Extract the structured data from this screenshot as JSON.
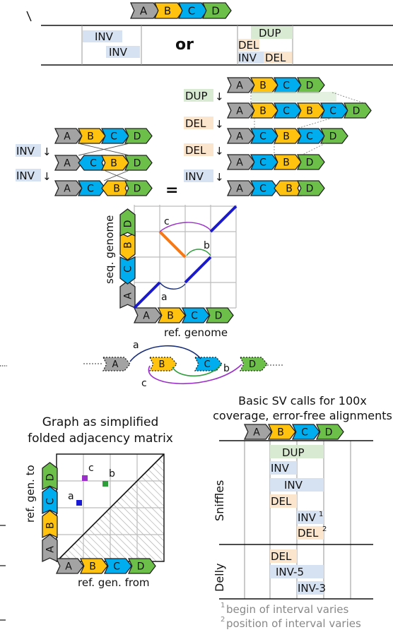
{
  "colors": {
    "gene_a": "#a3a3a3",
    "gene_b": "#ffc20e",
    "gene_c": "#00aeef",
    "gene_d": "#6cc04a",
    "dup_bg": "#d9ead3",
    "del_bg": "#fce5cd",
    "inv_bg": "#d6e2f2",
    "path_blue": "#1a1ad4",
    "path_orange": "#f27a1a",
    "edge_purple": "#9b2fc9",
    "edge_green": "#2e9e3a",
    "edge_navy": "#1a2f7a",
    "grid": "#bcbcbc",
    "hatch": "#aaaaaa"
  },
  "genes": {
    "a": "A",
    "b": "B",
    "c": "C",
    "d": "D"
  },
  "top": {
    "or_label": "or",
    "left_calls": [
      "INV",
      "INV"
    ],
    "right_calls": [
      "DUP",
      "DEL",
      "INV",
      "DEL"
    ]
  },
  "left_path": {
    "steps": [
      "INV",
      "INV"
    ],
    "equals": "="
  },
  "right_path": {
    "steps": [
      "DUP",
      "DEL",
      "DEL",
      "INV"
    ]
  },
  "dotplot": {
    "ylabel": "seq. genome",
    "xlabel": "ref. genome",
    "edge_labels": [
      "a",
      "b",
      "c"
    ]
  },
  "graph": {
    "edge_labels": [
      "a",
      "b",
      "c"
    ]
  },
  "matrix": {
    "title_line1": "Graph as simplified",
    "title_line2": "folded adjacency matrix",
    "ylabel": "ref. gen. to",
    "xlabel": "ref. gen. from",
    "cell_labels": [
      "a",
      "b",
      "c"
    ]
  },
  "calls": {
    "title_line1": "Basic SV calls for 100x",
    "title_line2": "coverage, error-free alignments",
    "sniffles_label": "Sniffles",
    "delly_label": "Delly",
    "sniffles_rows": [
      {
        "label": "DUP",
        "type": "dup"
      },
      {
        "label": "INV",
        "type": "inv"
      },
      {
        "label": "INV",
        "type": "inv"
      },
      {
        "label": "DEL",
        "type": "del"
      },
      {
        "label": "INV",
        "sup": "1",
        "type": "inv"
      },
      {
        "label": "DEL",
        "sup": "2",
        "type": "del"
      }
    ],
    "delly_rows": [
      {
        "label": "DEL",
        "type": "del"
      },
      {
        "label": "INV-5",
        "type": "inv"
      },
      {
        "label": "INV-3",
        "type": "inv"
      }
    ],
    "footnote1_num": "1",
    "footnote1": "begin of interval varies",
    "footnote2_num": "2",
    "footnote2": "position of interval varies"
  }
}
